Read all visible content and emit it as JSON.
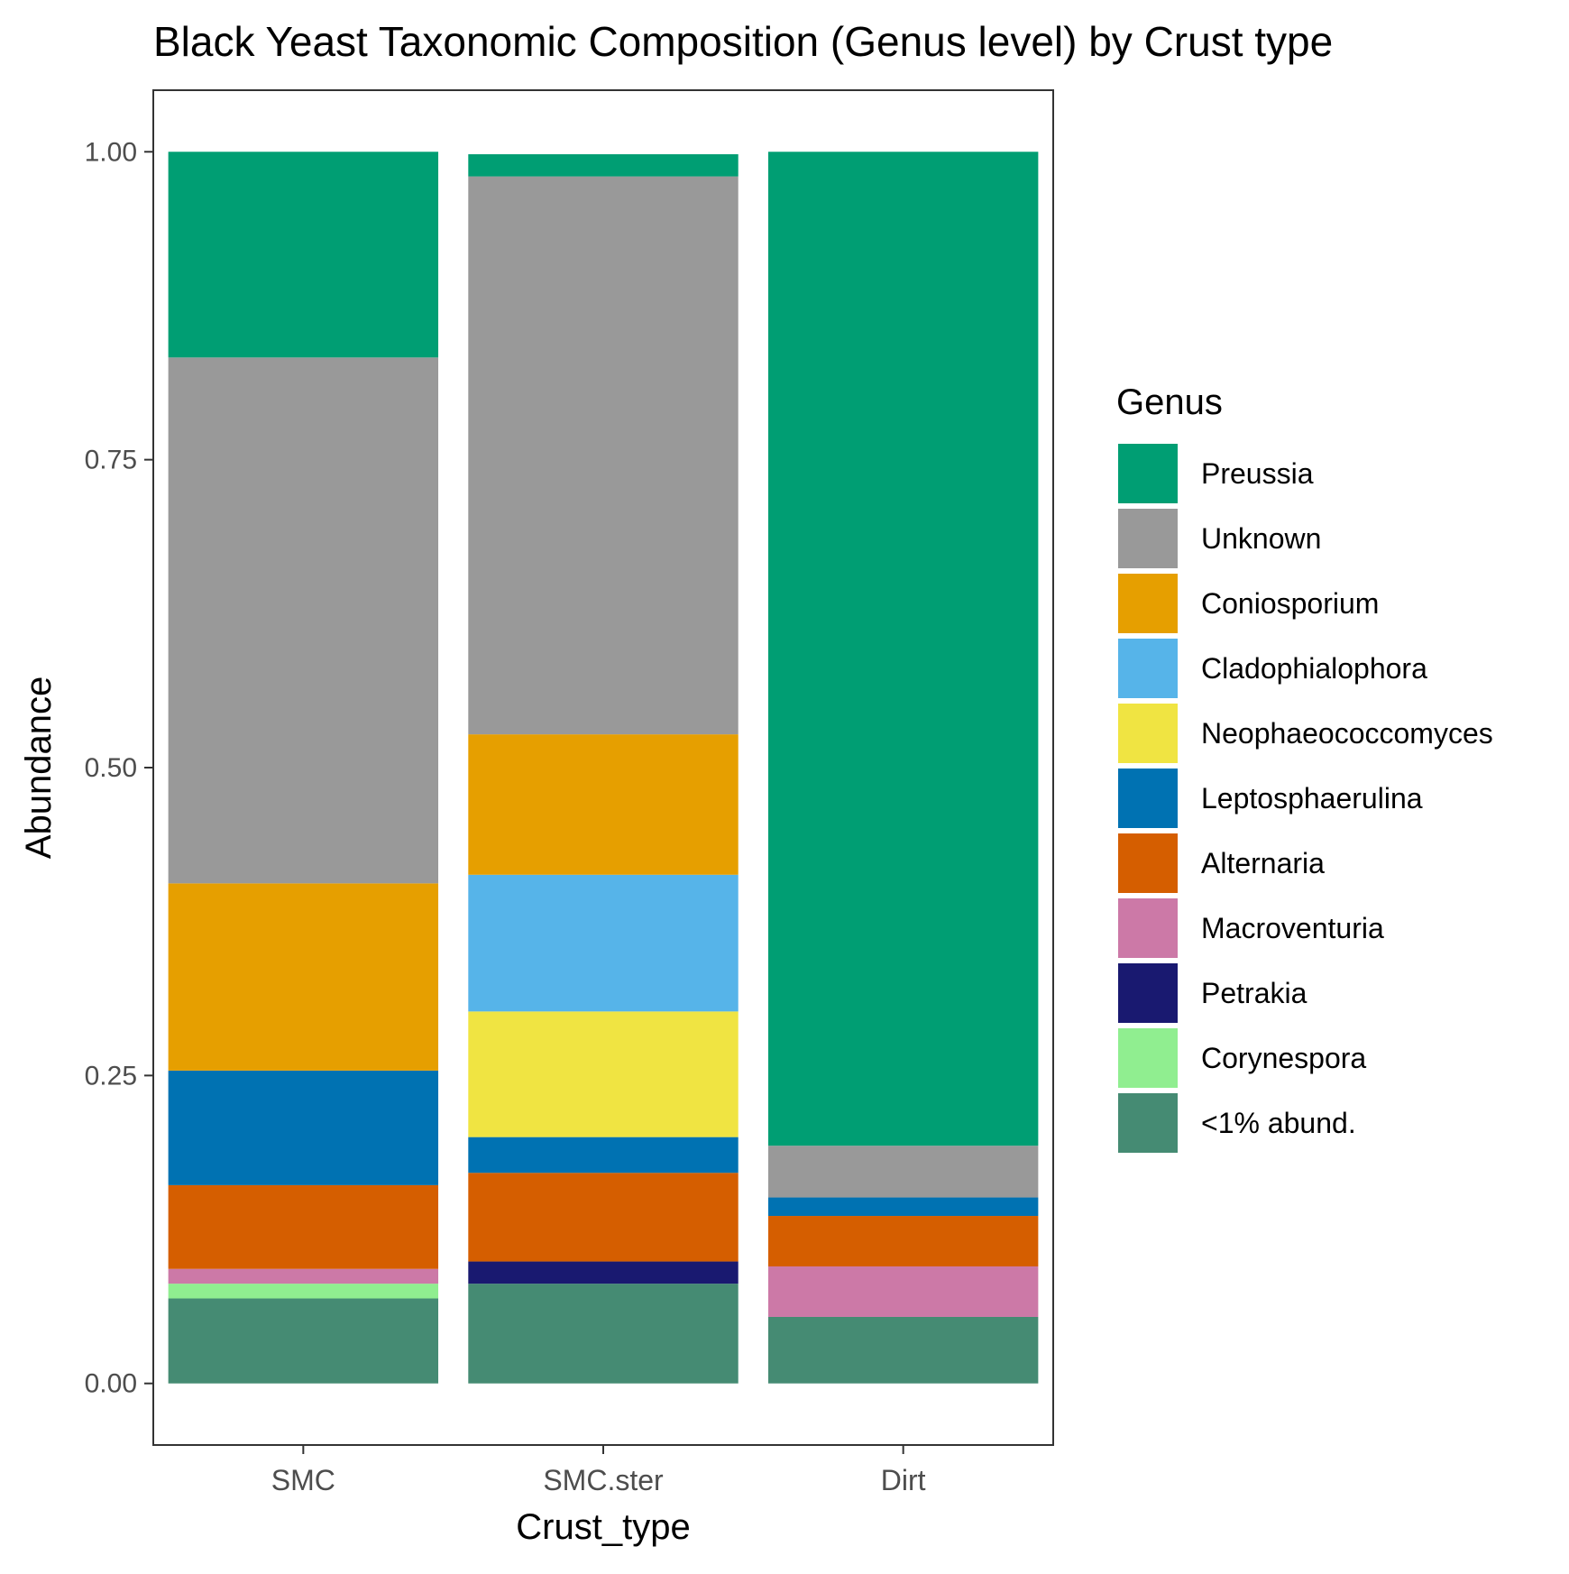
{
  "chart_data": {
    "type": "bar",
    "stacked": true,
    "title": "Black Yeast Taxonomic Composition (Genus level) by Crust type",
    "xlabel": "Crust_type",
    "ylabel": "Abundance",
    "categories": [
      "SMC",
      "SMC.ster",
      "Dirt"
    ],
    "ylim": [
      -0.05,
      1.05
    ],
    "yticks": [
      "0.00",
      "0.25",
      "0.50",
      "0.75",
      "1.00"
    ],
    "legend": {
      "title": "Genus",
      "position": "right"
    },
    "series": [
      {
        "name": "<1% abund.",
        "color": "#458B73",
        "values": [
          0.069,
          0.081,
          0.054
        ]
      },
      {
        "name": "Corynespora",
        "color": "#90EE90",
        "values": [
          0.012,
          0.0,
          0.0
        ]
      },
      {
        "name": "Petrakia",
        "color": "#191970",
        "values": [
          0.0,
          0.018,
          0.0
        ]
      },
      {
        "name": "Macroventuria",
        "color": "#CC79A7",
        "values": [
          0.012,
          0.0,
          0.041
        ]
      },
      {
        "name": "Alternaria",
        "color": "#D55E00",
        "values": [
          0.068,
          0.072,
          0.041
        ]
      },
      {
        "name": "Leptosphaerulina",
        "color": "#0072B2",
        "values": [
          0.093,
          0.029,
          0.015
        ]
      },
      {
        "name": "Neophaeococcomyces",
        "color": "#F0E442",
        "values": [
          0.0,
          0.102,
          0.0
        ]
      },
      {
        "name": "Cladophialophora",
        "color": "#56B4E9",
        "values": [
          0.0,
          0.111,
          0.0
        ]
      },
      {
        "name": "Coniosporium",
        "color": "#E69F00",
        "values": [
          0.152,
          0.114,
          0.0
        ]
      },
      {
        "name": "Unknown",
        "color": "#999999",
        "values": [
          0.427,
          0.453,
          0.042
        ]
      },
      {
        "name": "Preussia",
        "color": "#009E73",
        "values": [
          0.167,
          0.018,
          0.807
        ]
      }
    ]
  }
}
